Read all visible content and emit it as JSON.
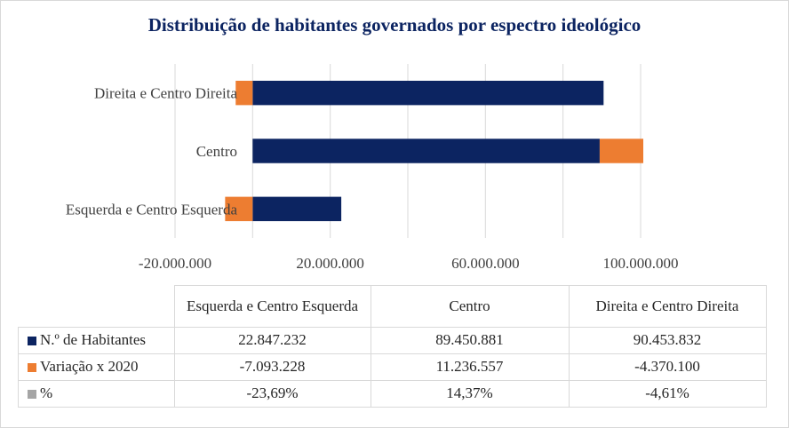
{
  "chart_data": {
    "type": "bar",
    "orientation": "horizontal",
    "stacked": true,
    "title": "Distribuição de habitantes governados por espectro ideológico",
    "categories": [
      "Esquerda e Centro Esquerda",
      "Centro",
      "Direita e Centro Direita"
    ],
    "categories_display": [
      "Esquerda e Centro Esquerda",
      "Centro",
      "Direita e Centro Direita"
    ],
    "series": [
      {
        "name": "N.º de Habitantes",
        "values": [
          22847232,
          89450881,
          90453832
        ],
        "color": "#0c2461"
      },
      {
        "name": "Variação x 2020",
        "values": [
          -7093228,
          11236557,
          -4370100
        ],
        "color": "#ed7d31"
      },
      {
        "name": "%",
        "values": [
          -23.69,
          14.37,
          -4.61
        ],
        "color": "#a5a5a5"
      }
    ],
    "xlim": [
      -20000000,
      100000000
    ],
    "x_gridlines": [
      -20000000,
      0,
      20000000,
      40000000,
      60000000,
      80000000,
      100000000
    ],
    "tick_labels": [
      "-20.000.000",
      "20.000.000",
      "60.000.000",
      "100.000.000"
    ],
    "grid": true,
    "data_table": {
      "header": [
        "Esquerda e Centro Esquerda",
        "Centro",
        "Direita e Centro Direita"
      ],
      "rows": [
        {
          "label": "N.º de Habitantes",
          "cells": [
            "22.847.232",
            "89.450.881",
            "90.453.832"
          ]
        },
        {
          "label": "Variação x 2020",
          "cells": [
            "-7.093.228",
            "11.236.557",
            "-4.370.100"
          ]
        },
        {
          "label": "%",
          "cells": [
            "-23,69%",
            "14,37%",
            "-4,61%"
          ]
        }
      ]
    }
  }
}
